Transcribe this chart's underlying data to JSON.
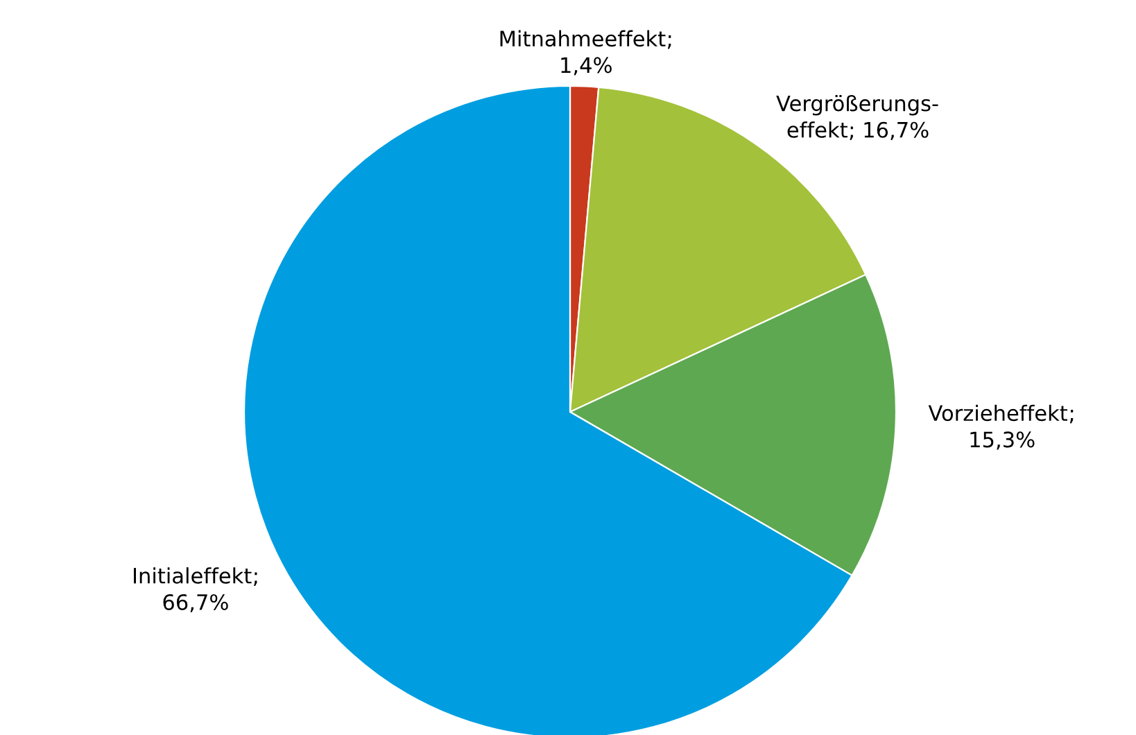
{
  "chart_data": {
    "type": "pie",
    "categories": [
      "Mitnahmeeffekt",
      "Vergrößerungs-\neffekt",
      "Vorzieheffekt",
      "Initialeffekt"
    ],
    "values": [
      1.4,
      16.7,
      15.3,
      66.7
    ],
    "value_labels": [
      ";\n1,4%",
      "; 16,7%",
      ";\n15,3%",
      ";\n66,7%"
    ],
    "colors": [
      "#c9391d",
      "#a3c13a",
      "#5ea851",
      "#009ee0"
    ]
  }
}
